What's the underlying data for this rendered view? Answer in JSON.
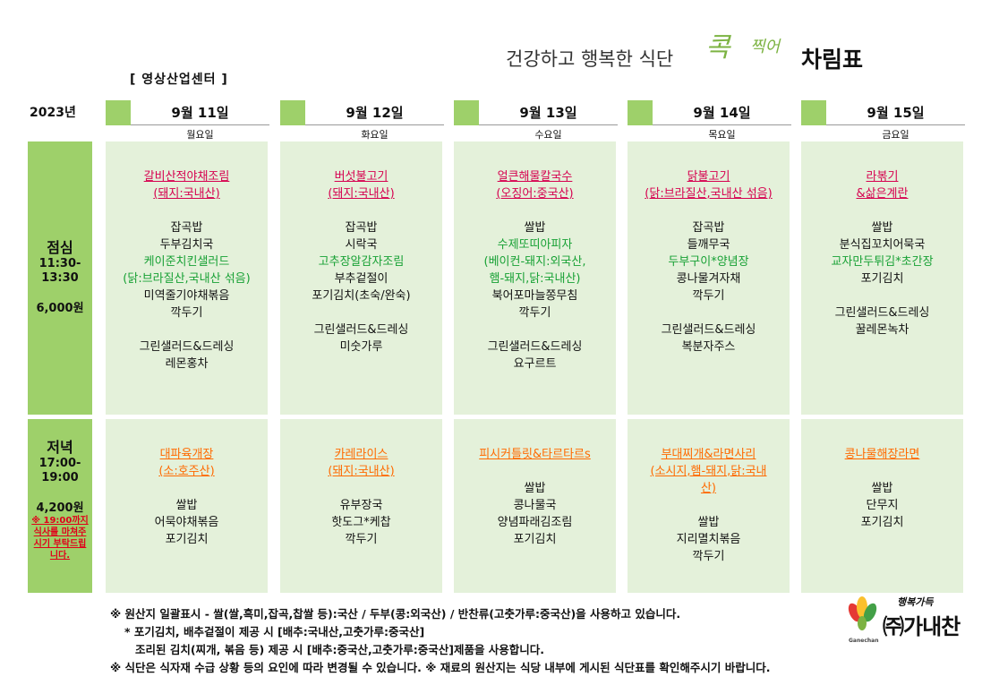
{
  "header": {
    "location": "[ 영상산업센터 ]",
    "title": "건강하고 행복한 식단",
    "brand_main": "콕",
    "brand_sub": "찍어",
    "sheet": "차림표"
  },
  "year": "2023년",
  "days": [
    {
      "date": "9월 11일",
      "weekday": "월요일"
    },
    {
      "date": "9월 12일",
      "weekday": "화요일"
    },
    {
      "date": "9월 13일",
      "weekday": "수요일"
    },
    {
      "date": "9월 14일",
      "weekday": "목요일"
    },
    {
      "date": "9월 15일",
      "weekday": "금요일"
    }
  ],
  "lunch": {
    "label": "점심",
    "time_start": "11:30-",
    "time_end": "13:30",
    "price": "6,000원",
    "menus": [
      {
        "main": [
          "갈비산적야채조림",
          "(돼지:국내산)"
        ],
        "items": [
          "잡곡밥",
          "두부김치국"
        ],
        "green": [
          "케이준치킨샐러드",
          "(닭:브라질산,국내산 섞음)"
        ],
        "items2": [
          "미역줄기야채볶음",
          "깍두기"
        ],
        "extras": [
          "그린샐러드&드레싱",
          "레몬홍차"
        ]
      },
      {
        "main": [
          "버섯불고기",
          "(돼지:국내산)"
        ],
        "items": [
          "잡곡밥",
          "시락국"
        ],
        "green": [
          "고추장알감자조림"
        ],
        "items2": [
          "부추겉절이",
          "포기김치(초숙/완숙)"
        ],
        "extras": [
          "그린샐러드&드레싱",
          "미숫가루"
        ]
      },
      {
        "main": [
          "얼큰해물칼국수",
          "(오징어:중국산)"
        ],
        "items": [
          "쌀밥"
        ],
        "green": [
          "수제또띠아피자",
          "(베이컨-돼지:외국산,",
          "햄-돼지,닭:국내산)"
        ],
        "items2": [
          "북어포마늘쫑무침",
          "깍두기"
        ],
        "extras": [
          "그린샐러드&드레싱",
          "요구르트"
        ]
      },
      {
        "main": [
          "닭불고기",
          "(닭:브라질산,국내산 섞음)"
        ],
        "items": [
          "잡곡밥",
          "들깨무국"
        ],
        "green": [
          "두부구이*양념장"
        ],
        "items2": [
          "콩나물겨자채",
          "깍두기"
        ],
        "extras": [
          "그린샐러드&드레싱",
          "복분자주스"
        ]
      },
      {
        "main": [
          "라볶기",
          "&삶은계란"
        ],
        "items": [
          "쌀밥",
          "분식집꼬치어묵국"
        ],
        "green": [
          "교자만두튀김*초간장"
        ],
        "items2": [
          "포기김치"
        ],
        "extras": [
          "그린샐러드&드레싱",
          "꿀레몬녹차"
        ]
      }
    ]
  },
  "dinner": {
    "label": "저녁",
    "time_start": "17:00-",
    "time_end": "19:00",
    "price": "4,200원",
    "note": "※ 19:00까지 식사를 마쳐주시기 부탁드립니다.",
    "menus": [
      {
        "main": [
          "대파육개장",
          "(소:호주산)"
        ],
        "items": [
          "쌀밥",
          "어묵야채볶음",
          "포기김치"
        ]
      },
      {
        "main": [
          "카레라이스",
          "(돼지:국내산)"
        ],
        "items": [
          "유부장국",
          "핫도그*케찹",
          "깍두기"
        ]
      },
      {
        "main": [
          "피시커틀릿&타르타르s"
        ],
        "items": [
          "쌀밥",
          "콩나물국",
          "양념파래김조림",
          "포기김치"
        ]
      },
      {
        "main": [
          "부대찌개&라면사리",
          "(소시지,햄-돼지,닭:국내",
          "산)"
        ],
        "items": [
          "쌀밥",
          "지리멸치볶음",
          "깍두기"
        ]
      },
      {
        "main": [
          "콩나물해장라면"
        ],
        "items": [
          "쌀밥",
          "단무지",
          "포기김치"
        ]
      }
    ]
  },
  "footer": {
    "line1": "※ 원산지 일괄표시 - 쌀(쌀,흑미,잡곡,찹쌀 등):국산 / 두부(콩:외국산) / 반찬류(고춧가루:중국산)을 사용하고 있습니다.",
    "line2": "* 포기김치, 배추겉절이 제공 시 [배추:국내산,고춧가루:중국산]",
    "line3": "조리된 김치(찌개, 볶음 등) 제공 시  [배추:중국산,고춧가루:중국산]제품을 사용합니다.",
    "line4": "※ 식단은 식자재 수급 상황 등의 요인에 따라 변경될 수 있습니다. ※ 재료의 원산지는 식당 내부에 게시된 식단표를 확인해주시기 바랍니다."
  },
  "logo": {
    "tagline": "행복가득",
    "name": "㈜가내찬",
    "sub": "Ganechan"
  },
  "colors": {
    "accent_green": "#9ed06a",
    "cell_bg": "#e4f1da",
    "lunch_main": "#d6004f",
    "dinner_main": "#ff6a00",
    "side_dish_green": "#18a135"
  }
}
